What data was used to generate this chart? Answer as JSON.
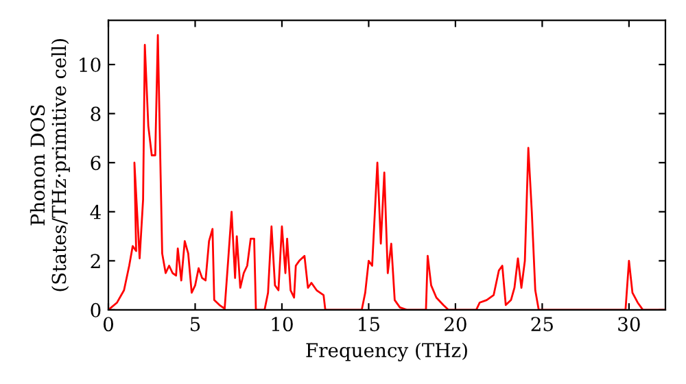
{
  "chart_data": {
    "type": "line",
    "xlabel": "Frequency (THz)",
    "ylabel": "Phonon DOS\n(States/THz·primitive cell)",
    "xlim": [
      0,
      32.1
    ],
    "ylim": [
      0,
      11.8
    ],
    "xticks": [
      0,
      5,
      10,
      15,
      20,
      25,
      30
    ],
    "yticks": [
      0,
      2,
      4,
      6,
      8,
      10
    ],
    "grid": false,
    "legend": false,
    "marker": "none",
    "line_style": "solid",
    "series": [
      {
        "color": "#ff0000",
        "x": [
          0,
          0.5,
          0.9,
          1.2,
          1.4,
          1.6,
          1.5,
          1.8,
          2.0,
          2.1,
          2.3,
          2.5,
          2.7,
          2.85,
          3.1,
          3.3,
          3.5,
          3.7,
          3.9,
          4.0,
          4.2,
          4.4,
          4.6,
          4.8,
          5.0,
          5.2,
          5.4,
          5.6,
          5.8,
          6.0,
          6.1,
          6.4,
          6.7,
          6.9,
          7.1,
          7.3,
          7.4,
          7.6,
          7.8,
          8.0,
          8.2,
          8.4,
          8.5,
          9.0,
          9.2,
          9.4,
          9.6,
          9.8,
          10.0,
          10.2,
          10.3,
          10.5,
          10.7,
          10.8,
          11.0,
          11.3,
          11.5,
          11.7,
          12.0,
          12.4,
          12.5,
          14.6,
          14.8,
          15.0,
          15.2,
          15.5,
          15.7,
          15.9,
          16.1,
          16.3,
          16.5,
          16.8,
          17.2,
          18.3,
          18.4,
          18.6,
          18.9,
          19.3,
          19.6,
          21.2,
          21.4,
          21.8,
          22.2,
          22.5,
          22.7,
          22.9,
          23.2,
          23.4,
          23.6,
          23.8,
          24.0,
          24.2,
          24.4,
          24.6,
          24.8,
          29.8,
          30.0,
          30.2,
          30.5,
          30.8,
          32.1
        ],
        "values": [
          0,
          0.3,
          0.8,
          1.8,
          2.6,
          2.4,
          6.0,
          2.1,
          4.5,
          10.8,
          7.5,
          6.3,
          6.3,
          11.2,
          2.3,
          1.5,
          1.8,
          1.5,
          1.4,
          2.5,
          1.2,
          2.8,
          2.3,
          0.7,
          1.0,
          1.7,
          1.3,
          1.2,
          2.8,
          3.3,
          0.4,
          0.2,
          0.05,
          2.0,
          4.0,
          1.3,
          3.0,
          0.9,
          1.5,
          1.8,
          2.9,
          2.9,
          0,
          0,
          0.7,
          3.4,
          1.0,
          0.8,
          3.4,
          1.5,
          2.9,
          0.8,
          0.5,
          1.8,
          2.0,
          2.2,
          0.9,
          1.1,
          0.8,
          0.6,
          0,
          0,
          0.7,
          2.0,
          1.8,
          6.0,
          2.7,
          5.6,
          1.5,
          2.7,
          0.4,
          0.1,
          0,
          0,
          2.2,
          1.0,
          0.5,
          0.2,
          0,
          0,
          0.3,
          0.4,
          0.6,
          1.6,
          1.8,
          0.2,
          0.4,
          0.9,
          2.1,
          0.9,
          2.0,
          6.6,
          4.0,
          0.8,
          0,
          0,
          2.0,
          0.7,
          0.3,
          0,
          0
        ]
      }
    ]
  }
}
